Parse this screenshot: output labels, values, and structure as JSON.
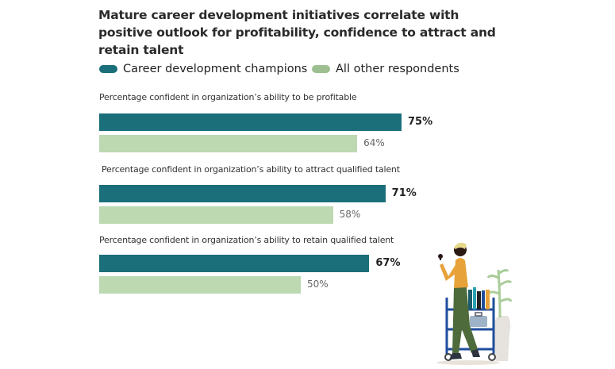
{
  "chart_data": {
    "type": "bar",
    "orientation": "horizontal",
    "title": "Mature career development initiatives correlate with positive outlook for profitability, confidence to attract and retain talent",
    "categories": [
      "Percentage confident in organization’s ability to be profitable",
      "Percentage confident in organization’s ability to attract qualified talent",
      "Percentage confident in organization’s ability to retain qualified talent"
    ],
    "series": [
      {
        "name": "Career development champions",
        "values": [
          75,
          71,
          67
        ],
        "labels": [
          "75%",
          "71%",
          "67%"
        ],
        "color": "#1b6f7a"
      },
      {
        "name": "All other respondents",
        "values": [
          64,
          58,
          50
        ],
        "labels": [
          "64%",
          "58%",
          "50%"
        ],
        "color": "#bcd9b2"
      }
    ],
    "legend_colors": [
      "#1b6f7a",
      "#9dbf92"
    ],
    "xlim": [
      0,
      100
    ],
    "legend_position": "top-left",
    "grid": false
  }
}
